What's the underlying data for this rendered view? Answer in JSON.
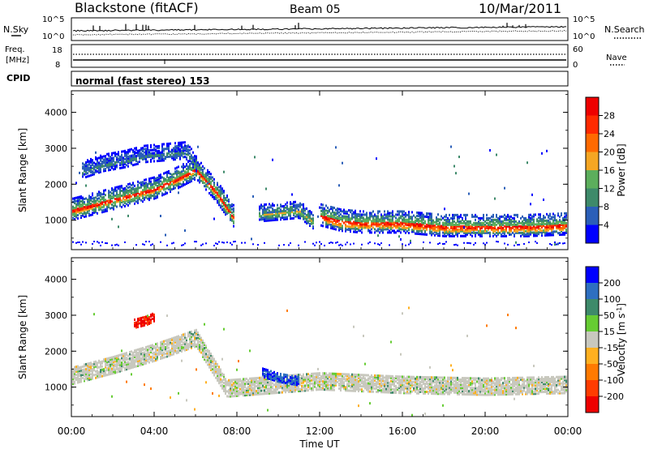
{
  "header": {
    "station": "Blackstone (fitACF)",
    "beam": "Beam 05",
    "date": "10/Mar/2011"
  },
  "noise_panel": {
    "left_label": "N.Sky",
    "right_label": "N.Search",
    "left_ticks": [
      "10^5",
      "10^0"
    ],
    "right_ticks": [
      "10^5",
      "10^0"
    ]
  },
  "freq_panel": {
    "left_label_1": "Freq.",
    "left_label_2": "[MHz]",
    "right_label": "Nave",
    "left_ticks": [
      "18",
      "8"
    ],
    "right_ticks": [
      "60",
      "0"
    ]
  },
  "cpid_panel": {
    "label": "CPID",
    "text": "normal (fast stereo) 153"
  },
  "range_axis": {
    "label": "Slant Range [km]",
    "ticks": [
      "4000",
      "3000",
      "2000",
      "1000"
    ]
  },
  "time_axis": {
    "label": "Time UT",
    "ticks": [
      "00:00",
      "04:00",
      "08:00",
      "12:00",
      "16:00",
      "20:00",
      "00:00"
    ]
  },
  "power_scale": {
    "label": "Power [dB]",
    "ticks": [
      "28",
      "24",
      "20",
      "16",
      "12",
      "8",
      "4"
    ],
    "colors": [
      "#0000ff",
      "#2b5fb8",
      "#3e8a6a",
      "#5cae5c",
      "#f5a623",
      "#ff6a00",
      "#ff2a00",
      "#ee0000"
    ]
  },
  "velocity_scale": {
    "label_main": "Velocity [m s",
    "label_exp": "-1",
    "label_end": "]",
    "ticks": [
      "200",
      "100",
      "50",
      "15",
      "-15",
      "-50",
      "-100",
      "-200"
    ],
    "colors": [
      "#0000ff",
      "#2e6fc0",
      "#3e8a6a",
      "#66cc33",
      "#c8c8be",
      "#ffb020",
      "#ff7a00",
      "#ff3c00",
      "#ee0000"
    ]
  },
  "chart_data": [
    {
      "type": "heatmap",
      "title": "Power",
      "xlabel": "Time UT",
      "ylabel": "Slant Range [km]",
      "xlim": [
        "00:00",
        "24:00"
      ],
      "ylim": [
        180,
        4600
      ],
      "colorbar_label": "Power [dB]",
      "colorbar_ticks": [
        4,
        8,
        12,
        16,
        20,
        24,
        28
      ],
      "features": [
        {
          "name": "main echo band",
          "x": [
            "00:00",
            "01:00",
            "02:00",
            "03:00",
            "04:00",
            "05:00",
            "06:00",
            "07:00",
            "07:50"
          ],
          "y": [
            1300,
            1450,
            1600,
            1750,
            1900,
            2150,
            2450,
            1800,
            1100
          ],
          "power_db": 24
        },
        {
          "name": "high range band",
          "x": [
            "00:30",
            "01:30",
            "02:30",
            "03:30",
            "04:30",
            "05:30",
            "06:00"
          ],
          "y": [
            2400,
            2600,
            2700,
            2850,
            2900,
            2950,
            2600
          ],
          "power_db": 10
        },
        {
          "name": "noon cluster",
          "x": [
            "09:00",
            "10:00",
            "11:00",
            "11:40"
          ],
          "y": [
            1200,
            1250,
            1300,
            1000
          ],
          "power_db": 18
        },
        {
          "name": "afternoon-night band",
          "x": [
            "12:00",
            "13:00",
            "14:00",
            "16:00",
            "18:00",
            "20:00",
            "22:00",
            "24:00"
          ],
          "y": [
            1150,
            1000,
            950,
            950,
            850,
            850,
            850,
            900
          ],
          "power_db": 28
        }
      ]
    },
    {
      "type": "heatmap",
      "title": "Velocity",
      "xlabel": "Time UT",
      "ylabel": "Slant Range [km]",
      "xlim": [
        "00:00",
        "24:00"
      ],
      "ylim": [
        180,
        4600
      ],
      "colorbar_label": "Velocity [m s-1]",
      "colorbar_ticks": [
        200,
        100,
        50,
        15,
        -15,
        -50,
        -100,
        -200
      ],
      "features": [
        {
          "name": "ground scatter band",
          "x": [
            "00:00",
            "02:00",
            "04:00",
            "06:00",
            "07:30",
            "12:00",
            "16:00",
            "20:00",
            "24:00"
          ],
          "y": [
            1350,
            1650,
            2000,
            2400,
            1000,
            1200,
            1100,
            1050,
            1100
          ],
          "velocity": 0
        },
        {
          "name": "positive velocity patch",
          "x": [
            "03:00",
            "03:40",
            "04:00"
          ],
          "y": [
            2800,
            2900,
            3000
          ],
          "velocity": -200
        },
        {
          "name": "noon patch",
          "x": [
            "09:10",
            "10:00",
            "11:00"
          ],
          "y": [
            1450,
            1300,
            1200
          ],
          "velocity": 100
        }
      ]
    }
  ]
}
